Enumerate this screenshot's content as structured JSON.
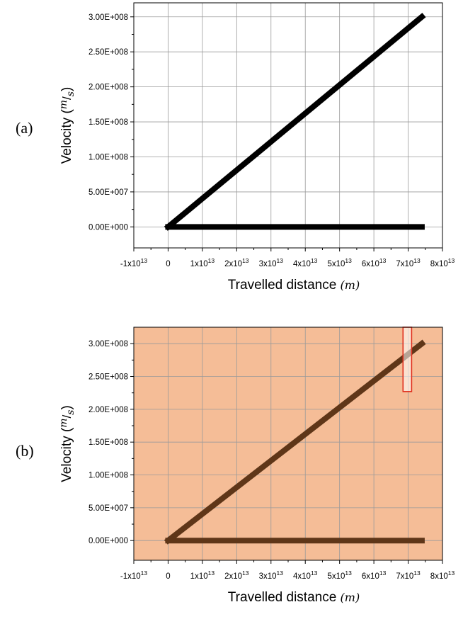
{
  "panels": [
    {
      "label": "(a)"
    },
    {
      "label": "(b)"
    }
  ],
  "chart_data": [
    {
      "type": "line",
      "panel": "(a)",
      "xlabel": "Travelled distance",
      "xunit": "(m)",
      "ylabel": "Velocity",
      "yunit": "m/s",
      "xlim": [
        -10000000000000.0,
        80000000000000.0
      ],
      "ylim": [
        -30000000.0,
        320000000.0
      ],
      "x_tick_values": [
        -10000000000000.0,
        0,
        10000000000000.0,
        20000000000000.0,
        30000000000000.0,
        40000000000000.0,
        50000000000000.0,
        60000000000000.0,
        70000000000000.0,
        80000000000000.0
      ],
      "x_tick_labels": [
        {
          "base": "-1x10",
          "exp": "13"
        },
        {
          "base": "0",
          "exp": ""
        },
        {
          "base": "1x10",
          "exp": "13"
        },
        {
          "base": "2x10",
          "exp": "13"
        },
        {
          "base": "3x10",
          "exp": "13"
        },
        {
          "base": "4x10",
          "exp": "13"
        },
        {
          "base": "5x10",
          "exp": "13"
        },
        {
          "base": "6x10",
          "exp": "13"
        },
        {
          "base": "7x10",
          "exp": "13"
        },
        {
          "base": "8x10",
          "exp": "13"
        }
      ],
      "y_tick_values": [
        0,
        50000000.0,
        100000000.0,
        150000000.0,
        200000000.0,
        250000000.0,
        300000000.0
      ],
      "y_tick_labels": [
        "0.00E+000",
        "5.00E+007",
        "1.00E+008",
        "1.50E+008",
        "2.00E+008",
        "2.50E+008",
        "3.00E+008"
      ],
      "grid": true,
      "background": "#ffffff",
      "series": [
        {
          "color": "#000000",
          "x": [
            0,
            74000000000000.0
          ],
          "y": [
            0,
            300000000.0
          ]
        },
        {
          "color": "#000000",
          "x": [
            0,
            74000000000000.0
          ],
          "y": [
            0,
            0
          ]
        }
      ]
    },
    {
      "type": "line",
      "panel": "(b)",
      "xlabel": "Travelled distance",
      "xunit": "(m)",
      "ylabel": "Velocity",
      "yunit": "m/s",
      "xlim": [
        -10000000000000.0,
        80000000000000.0
      ],
      "ylim": [
        -30000000.0,
        325000000.0
      ],
      "x_tick_values": [
        -10000000000000.0,
        0,
        10000000000000.0,
        20000000000000.0,
        30000000000000.0,
        40000000000000.0,
        50000000000000.0,
        60000000000000.0,
        70000000000000.0,
        80000000000000.0
      ],
      "x_tick_labels": [
        {
          "base": "-1x10",
          "exp": "13"
        },
        {
          "base": "0",
          "exp": ""
        },
        {
          "base": "1x10",
          "exp": "13"
        },
        {
          "base": "2x10",
          "exp": "13"
        },
        {
          "base": "3x10",
          "exp": "13"
        },
        {
          "base": "4x10",
          "exp": "13"
        },
        {
          "base": "5x10",
          "exp": "13"
        },
        {
          "base": "6x10",
          "exp": "13"
        },
        {
          "base": "7x10",
          "exp": "13"
        },
        {
          "base": "8x10",
          "exp": "13"
        }
      ],
      "y_tick_values": [
        0,
        50000000.0,
        100000000.0,
        150000000.0,
        200000000.0,
        250000000.0,
        300000000.0
      ],
      "y_tick_labels": [
        "0.00E+000",
        "5.00E+007",
        "1.00E+008",
        "1.50E+008",
        "2.00E+008",
        "2.50E+008",
        "3.00E+008"
      ],
      "grid": true,
      "background": "#f5bd97",
      "series": [
        {
          "color": "#5f3618",
          "x": [
            0,
            74000000000000.0
          ],
          "y": [
            0,
            300000000.0
          ]
        },
        {
          "color": "#5f3618",
          "x": [
            0,
            74000000000000.0
          ],
          "y": [
            0,
            0
          ]
        }
      ],
      "highlight_region": {
        "x": [
          68500000000000.0,
          71000000000000.0
        ],
        "y": [
          227000000.0,
          325000000.0
        ],
        "stroke": "#e0301e"
      }
    }
  ]
}
